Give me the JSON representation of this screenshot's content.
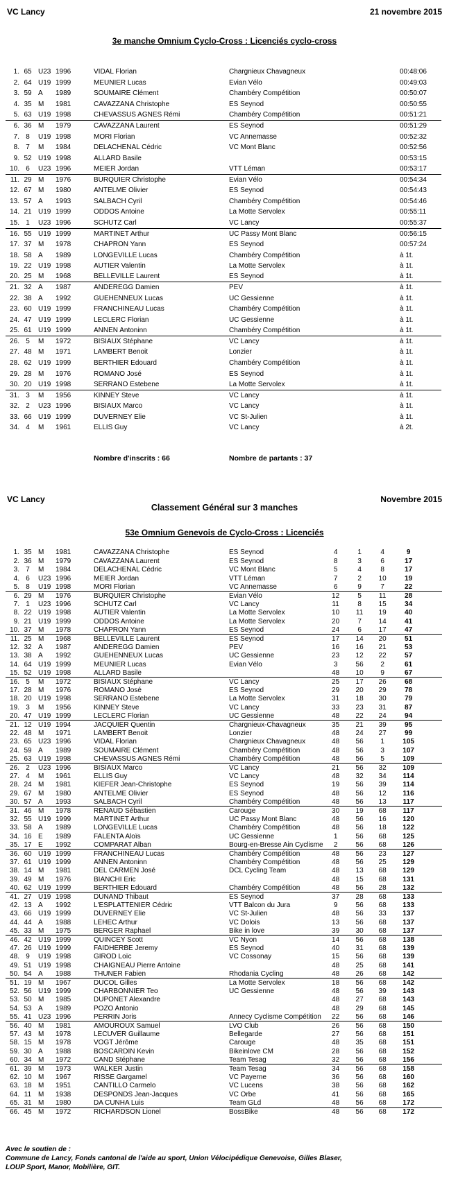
{
  "section1": {
    "header_left": "VC Lancy",
    "header_right": "21 novembre 2015",
    "title": "3e manche Omnium Cyclo-Cross : Licenciés cyclo-cross",
    "inscrits": "Nombre d'inscrits : 66",
    "partants": "Nombre de partants : 37",
    "rows": [
      [
        "1.",
        "65",
        "U23",
        "1996",
        "VIDAL Florian",
        "Chargnieux Chavagneux",
        "00:48:06"
      ],
      [
        "2.",
        "64",
        "U19",
        "1999",
        "MEUNIER Lucas",
        "Evian Vélo",
        "00:49:03"
      ],
      [
        "3.",
        "59",
        "A",
        "1989",
        "SOUMAIRE Clément",
        "Chambéry Compétition",
        "00:50:07"
      ],
      [
        "4.",
        "35",
        "M",
        "1981",
        "CAVAZZANA Christophe",
        "ES Seynod",
        "00:50:55"
      ],
      [
        "5.",
        "63",
        "U19",
        "1998",
        "CHEVASSUS AGNES Rémi",
        "Chambéry Compétition",
        "00:51:21"
      ],
      [
        "6.",
        "36",
        "M",
        "1979",
        "CAVAZZANA Laurent",
        "ES Seynod",
        "00:51:29"
      ],
      [
        "7.",
        "8",
        "U19",
        "1998",
        "MORI Florian",
        "VC Annemasse",
        "00:52:32"
      ],
      [
        "8.",
        "7",
        "M",
        "1984",
        "DELACHENAL Cédric",
        "VC Mont Blanc",
        "00:52:56"
      ],
      [
        "9.",
        "52",
        "U19",
        "1998",
        "ALLARD Basile",
        "",
        "00:53:15"
      ],
      [
        "10.",
        "6",
        "U23",
        "1996",
        "MEIER Jordan",
        "VTT Léman",
        "00:53:17"
      ],
      [
        "11.",
        "29",
        "M",
        "1976",
        "BURQUIER Christophe",
        "Evian Vélo",
        "00:54:34"
      ],
      [
        "12.",
        "67",
        "M",
        "1980",
        "ANTELME Olivier",
        "ES Seynod",
        "00:54:43"
      ],
      [
        "13.",
        "57",
        "A",
        "1993",
        "SALBACH Cyril",
        "Chambéry Compétition",
        "00:54:46"
      ],
      [
        "14.",
        "21",
        "U19",
        "1999",
        "ODDOS Antoine",
        "La Motte Servolex",
        "00:55:11"
      ],
      [
        "15.",
        "1",
        "U23",
        "1996",
        "SCHUTZ Carl",
        "VC Lancy",
        "00:55:37"
      ],
      [
        "16.",
        "55",
        "U19",
        "1999",
        "MARTINET Arthur",
        "UC Passy Mont Blanc",
        "00:56:15"
      ],
      [
        "17.",
        "37",
        "M",
        "1978",
        "CHAPRON Yann",
        "ES Seynod",
        "00:57:24"
      ],
      [
        "18.",
        "58",
        "A",
        "1989",
        "LONGEVILLE Lucas",
        "Chambéry Compétition",
        "à 1t."
      ],
      [
        "19.",
        "22",
        "U19",
        "1998",
        "AUTIER Valentin",
        "La Motte Servolex",
        "à 1t."
      ],
      [
        "20.",
        "25",
        "M",
        "1968",
        "BELLEVILLE Laurent",
        "ES Seynod",
        "à 1t."
      ],
      [
        "21.",
        "32",
        "A",
        "1987",
        "ANDEREGG Damien",
        "PEV",
        "à 1t."
      ],
      [
        "22.",
        "38",
        "A",
        "1992",
        "GUEHENNEUX Lucas",
        "UC Gessienne",
        "à 1t."
      ],
      [
        "23.",
        "60",
        "U19",
        "1999",
        "FRANCHINEAU Lucas",
        "Chambéry Compétition",
        "à 1t."
      ],
      [
        "24.",
        "47",
        "U19",
        "1999",
        "LECLERC Florian",
        "UC Gessienne",
        "à 1t."
      ],
      [
        "25.",
        "61",
        "U19",
        "1999",
        "ANNEN Antoninn",
        "Chambéry Compétition",
        "à 1t."
      ],
      [
        "26.",
        "5",
        "M",
        "1972",
        "BISIAUX Stéphane",
        "VC Lancy",
        "à 1t."
      ],
      [
        "27.",
        "48",
        "M",
        "1971",
        "LAMBERT Benoit",
        "Lonzier",
        "à 1t."
      ],
      [
        "28.",
        "62",
        "U19",
        "1999",
        "BERTHIER Edouard",
        "Chambéry Compétition",
        "à 1t."
      ],
      [
        "29.",
        "28",
        "M",
        "1976",
        "ROMANO José",
        "ES Seynod",
        "à 1t."
      ],
      [
        "30.",
        "20",
        "U19",
        "1998",
        "SERRANO Estebene",
        "La Motte Servolex",
        "à 1t."
      ],
      [
        "31.",
        "3",
        "M",
        "1956",
        "KINNEY Steve",
        "VC Lancy",
        "à 1t."
      ],
      [
        "32.",
        "2",
        "U23",
        "1996",
        "BISIAUX Marco",
        "VC Lancy",
        "à 1t."
      ],
      [
        "33.",
        "66",
        "U19",
        "1999",
        "DUVERNEY Elie",
        "VC St-Julien",
        "à 1t."
      ],
      [
        "34.",
        "4",
        "M",
        "1961",
        "ELLIS Guy",
        "VC Lancy",
        "à 2t."
      ]
    ]
  },
  "section2": {
    "header_left": "VC Lancy",
    "header_right": "Novembre 2015",
    "subtitle": "Classement Général sur 3 manches",
    "title": "53e Omnium Genevois de Cyclo-Cross : Licenciés",
    "rows": [
      [
        "1.",
        "35",
        "M",
        "1981",
        "CAVAZZANA Christophe",
        "ES Seynod",
        "4",
        "1",
        "4",
        "9"
      ],
      [
        "2.",
        "36",
        "M",
        "1979",
        "CAVAZZANA Laurent",
        "ES Seynod",
        "8",
        "3",
        "6",
        "17"
      ],
      [
        "3.",
        "7",
        "M",
        "1984",
        "DELACHENAL Cédric",
        "VC Mont Blanc",
        "5",
        "4",
        "8",
        "17"
      ],
      [
        "4.",
        "6",
        "U23",
        "1996",
        "MEIER Jordan",
        "VTT Léman",
        "7",
        "2",
        "10",
        "19"
      ],
      [
        "5.",
        "8",
        "U19",
        "1998",
        "MORI Florian",
        "VC Annemasse",
        "6",
        "9",
        "7",
        "22"
      ],
      [
        "6.",
        "29",
        "M",
        "1976",
        "BURQUIER Christophe",
        "Evian Vélo",
        "12",
        "5",
        "11",
        "28"
      ],
      [
        "7.",
        "1",
        "U23",
        "1996",
        "SCHUTZ Carl",
        "VC Lancy",
        "11",
        "8",
        "15",
        "34"
      ],
      [
        "8.",
        "22",
        "U19",
        "1998",
        "AUTIER Valentin",
        "La Motte Servolex",
        "10",
        "11",
        "19",
        "40"
      ],
      [
        "9.",
        "21",
        "U19",
        "1999",
        "ODDOS Antoine",
        "La Motte Servolex",
        "20",
        "7",
        "14",
        "41"
      ],
      [
        "10.",
        "37",
        "M",
        "1978",
        "CHAPRON Yann",
        "ES Seynod",
        "24",
        "6",
        "17",
        "47"
      ],
      [
        "11.",
        "25",
        "M",
        "1968",
        "BELLEVILLE Laurent",
        "ES Seynod",
        "17",
        "14",
        "20",
        "51"
      ],
      [
        "12.",
        "32",
        "A",
        "1987",
        "ANDEREGG Damien",
        "PEV",
        "16",
        "16",
        "21",
        "53"
      ],
      [
        "13.",
        "38",
        "A",
        "1992",
        "GUEHENNEUX Lucas",
        "UC Gessienne",
        "23",
        "12",
        "22",
        "57"
      ],
      [
        "14.",
        "64",
        "U19",
        "1999",
        "MEUNIER Lucas",
        "Evian Vélo",
        "3",
        "56",
        "2",
        "61"
      ],
      [
        "15.",
        "52",
        "U19",
        "1998",
        "ALLARD Basile",
        "",
        "48",
        "10",
        "9",
        "67"
      ],
      [
        "16.",
        "5",
        "M",
        "1972",
        "BISIAUX Stéphane",
        "VC Lancy",
        "25",
        "17",
        "26",
        "68"
      ],
      [
        "17.",
        "28",
        "M",
        "1976",
        "ROMANO José",
        "ES Seynod",
        "29",
        "20",
        "29",
        "78"
      ],
      [
        "18.",
        "20",
        "U19",
        "1998",
        "SERRANO Estebene",
        "La Motte Servolex",
        "31",
        "18",
        "30",
        "79"
      ],
      [
        "19.",
        "3",
        "M",
        "1956",
        "KINNEY Steve",
        "VC Lancy",
        "33",
        "23",
        "31",
        "87"
      ],
      [
        "20.",
        "47",
        "U19",
        "1999",
        "LECLERC Florian",
        "UC Gessienne",
        "48",
        "22",
        "24",
        "94"
      ],
      [
        "21.",
        "12",
        "U19",
        "1994",
        "JACQUIER Quentin",
        "Chargnieux-Chavagneux",
        "35",
        "21",
        "39",
        "95"
      ],
      [
        "22.",
        "48",
        "M",
        "1971",
        "LAMBERT Benoit",
        "Lonzier",
        "48",
        "24",
        "27",
        "99"
      ],
      [
        "23.",
        "65",
        "U23",
        "1996",
        "VIDAL Florian",
        "Chargnieux Chavagneux",
        "48",
        "56",
        "1",
        "105"
      ],
      [
        "24.",
        "59",
        "A",
        "1989",
        "SOUMAIRE Clément",
        "Chambéry Compétition",
        "48",
        "56",
        "3",
        "107"
      ],
      [
        "25.",
        "63",
        "U19",
        "1998",
        "CHEVASSUS AGNES Rémi",
        "Chambéry Compétition",
        "48",
        "56",
        "5",
        "109"
      ],
      [
        "26.",
        "2",
        "U23",
        "1996",
        "BISIAUX Marco",
        "VC Lancy",
        "21",
        "56",
        "32",
        "109"
      ],
      [
        "27.",
        "4",
        "M",
        "1961",
        "ELLIS Guy",
        "VC Lancy",
        "48",
        "32",
        "34",
        "114"
      ],
      [
        "28.",
        "24",
        "M",
        "1981",
        "KIEFER Jean-Christophe",
        "ES Seynod",
        "19",
        "56",
        "39",
        "114"
      ],
      [
        "29.",
        "67",
        "M",
        "1980",
        "ANTELME Olivier",
        "ES Seynod",
        "48",
        "56",
        "12",
        "116"
      ],
      [
        "30.",
        "57",
        "A",
        "1993",
        "SALBACH Cyril",
        "Chambéry Compétition",
        "48",
        "56",
        "13",
        "117"
      ],
      [
        "31.",
        "46",
        "M",
        "1978",
        "RENAUD Sébastien",
        "Carouge",
        "30",
        "19",
        "68",
        "117"
      ],
      [
        "32.",
        "55",
        "U19",
        "1999",
        "MARTINET Arthur",
        "UC Passy Mont Blanc",
        "48",
        "56",
        "16",
        "120"
      ],
      [
        "33.",
        "58",
        "A",
        "1989",
        "LONGEVILLE Lucas",
        "Chambéry Compétition",
        "48",
        "56",
        "18",
        "122"
      ],
      [
        "34.",
        "16",
        "E",
        "1989",
        "FALENTA Aloïs",
        "UC Gessienne",
        "1",
        "56",
        "68",
        "125"
      ],
      [
        "35.",
        "17",
        "E",
        "1992",
        "COMPARAT Alban",
        "Bourg-en-Bresse Ain Cyclisme",
        "2",
        "56",
        "68",
        "126"
      ],
      [
        "36.",
        "60",
        "U19",
        "1999",
        "FRANCHINEAU Lucas",
        "Chambéry Compétition",
        "48",
        "56",
        "23",
        "127"
      ],
      [
        "37.",
        "61",
        "U19",
        "1999",
        "ANNEN Antoninn",
        "Chambéry Compétition",
        "48",
        "56",
        "25",
        "129"
      ],
      [
        "38.",
        "14",
        "M",
        "1981",
        "DEL CARMEN José",
        "DCL Cycling Team",
        "48",
        "13",
        "68",
        "129"
      ],
      [
        "39.",
        "49",
        "M",
        "1976",
        "BIANCHI Eric",
        "",
        "48",
        "15",
        "68",
        "131"
      ],
      [
        "40.",
        "62",
        "U19",
        "1999",
        "BERTHIER Edouard",
        "Chambéry Compétition",
        "48",
        "56",
        "28",
        "132"
      ],
      [
        "41.",
        "27",
        "U19",
        "1998",
        "DUNAND Thibaut",
        "ES Seynod",
        "37",
        "28",
        "68",
        "133"
      ],
      [
        "42.",
        "13",
        "A",
        "1992",
        "L'ESPLATTENIER Cédric",
        "VTT Balcon du Jura",
        "9",
        "56",
        "68",
        "133"
      ],
      [
        "43.",
        "66",
        "U19",
        "1999",
        "DUVERNEY Elie",
        "VC St-Julien",
        "48",
        "56",
        "33",
        "137"
      ],
      [
        "44.",
        "44",
        "A",
        "1988",
        "LEHEC Arthur",
        "VC Dolois",
        "13",
        "56",
        "68",
        "137"
      ],
      [
        "45.",
        "33",
        "M",
        "1975",
        "BERGER Raphael",
        "Bike in love",
        "39",
        "30",
        "68",
        "137"
      ],
      [
        "46.",
        "42",
        "U19",
        "1999",
        "QUINCEY Scott",
        "VC Nyon",
        "14",
        "56",
        "68",
        "138"
      ],
      [
        "47.",
        "26",
        "U19",
        "1999",
        "FAIDHERBE Jeremy",
        "ES Seynod",
        "40",
        "31",
        "68",
        "139"
      ],
      [
        "48.",
        "9",
        "U19",
        "1998",
        "GIROD Loïc",
        "VC Cossonay",
        "15",
        "56",
        "68",
        "139"
      ],
      [
        "49.",
        "51",
        "U19",
        "1998",
        "CHAIGNEAU Pierre Antoine",
        "",
        "48",
        "25",
        "68",
        "141"
      ],
      [
        "50.",
        "54",
        "A",
        "1988",
        "THUNER Fabien",
        "Rhodania Cycling",
        "48",
        "26",
        "68",
        "142"
      ],
      [
        "51.",
        "19",
        "M",
        "1967",
        "DUCOL Gilles",
        "La Motte Servolex",
        "18",
        "56",
        "68",
        "142"
      ],
      [
        "52.",
        "56",
        "U19",
        "1999",
        "CHARBONNIER Teo",
        "UC Gessienne",
        "48",
        "56",
        "39",
        "143"
      ],
      [
        "53.",
        "50",
        "M",
        "1985",
        "DUPONET Alexandre",
        "",
        "48",
        "27",
        "68",
        "143"
      ],
      [
        "54.",
        "53",
        "A",
        "1989",
        "POZO Antonio",
        "",
        "48",
        "29",
        "68",
        "145"
      ],
      [
        "55.",
        "41",
        "U23",
        "1996",
        "PERRIN Joris",
        "Annecy Cyclisme Compétition",
        "22",
        "56",
        "68",
        "146"
      ],
      [
        "56.",
        "40",
        "M",
        "1981",
        "AMOUROUX Samuel",
        "LVO Club",
        "26",
        "56",
        "68",
        "150"
      ],
      [
        "57.",
        "43",
        "M",
        "1978",
        "LECUVER Guillaume",
        "Bellegarde",
        "27",
        "56",
        "68",
        "151"
      ],
      [
        "58.",
        "15",
        "M",
        "1978",
        "VOGT Jérôme",
        "Carouge",
        "48",
        "35",
        "68",
        "151"
      ],
      [
        "59.",
        "30",
        "A",
        "1988",
        "BOSCARDIN Kevin",
        "Bikeinlove CM",
        "28",
        "56",
        "68",
        "152"
      ],
      [
        "60.",
        "34",
        "M",
        "1972",
        "CAND Stéphane",
        "Team Tesag",
        "32",
        "56",
        "68",
        "156"
      ],
      [
        "61.",
        "39",
        "M",
        "1973",
        "WALKER Justin",
        "Team Tesag",
        "34",
        "56",
        "68",
        "158"
      ],
      [
        "62.",
        "10",
        "M",
        "1967",
        "RISSE Gargamel",
        "VC Payerne",
        "36",
        "56",
        "68",
        "160"
      ],
      [
        "63.",
        "18",
        "M",
        "1951",
        "CANTILLO Carmelo",
        "VC Lucens",
        "38",
        "56",
        "68",
        "162"
      ],
      [
        "64.",
        "11",
        "M",
        "1938",
        "DESPONDS Jean-Jacques",
        "VC Orbe",
        "41",
        "56",
        "68",
        "165"
      ],
      [
        "65.",
        "31",
        "M",
        "1980",
        "DA CUNHA Luis",
        "Team GLd",
        "48",
        "56",
        "68",
        "172"
      ],
      [
        "66.",
        "45",
        "M",
        "1972",
        "RICHARDSON Lionel",
        "BossBike",
        "48",
        "56",
        "68",
        "172"
      ]
    ]
  },
  "footer": {
    "line1": "Avec le soutien de :",
    "line2": "Commune de Lancy, Fonds cantonal de l'aide au sport, Union Vélocipédique Genevoise, Gilles Blaser,",
    "line3": "LOUP Sport, Manor, Mobilière, GIT."
  }
}
